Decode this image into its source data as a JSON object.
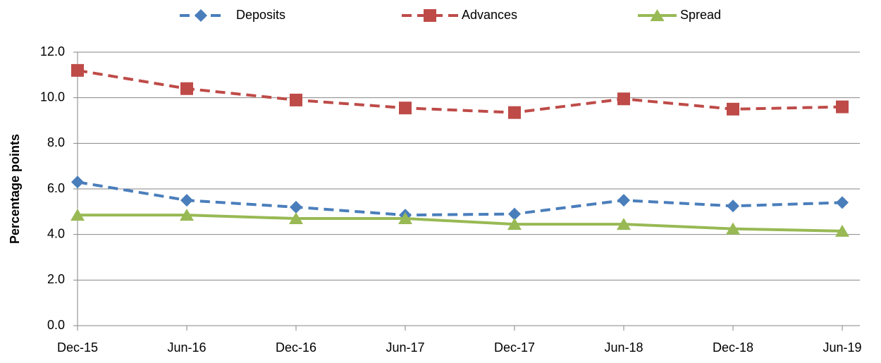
{
  "chart_data": {
    "type": "line",
    "y_label": "Percentage points",
    "categories": [
      "Dec-15",
      "Jun-16",
      "Dec-16",
      "Jun-17",
      "Dec-17",
      "Jun-18",
      "Dec-18",
      "Jun-19"
    ],
    "series": [
      {
        "name": "Deposits",
        "color": "#4a7ebb",
        "dashed": true,
        "marker": "diamond",
        "values": [
          6.3,
          5.5,
          5.2,
          4.85,
          4.9,
          5.5,
          5.25,
          5.4
        ]
      },
      {
        "name": "Advances",
        "color": "#be4b48",
        "dashed": true,
        "marker": "square",
        "values": [
          11.2,
          10.4,
          9.9,
          9.55,
          9.35,
          9.95,
          9.5,
          9.6
        ]
      },
      {
        "name": "Spread",
        "color": "#98b954",
        "dashed": false,
        "marker": "triangle",
        "values": [
          4.85,
          4.85,
          4.7,
          4.7,
          4.45,
          4.45,
          4.25,
          4.15
        ]
      }
    ],
    "ylim": [
      0,
      12
    ],
    "yticks": [
      {
        "value": 0,
        "label": "0.0"
      },
      {
        "value": 2,
        "label": "2.0"
      },
      {
        "value": 4,
        "label": "4.0"
      },
      {
        "value": 6,
        "label": "6.0"
      },
      {
        "value": 8,
        "label": "8.0"
      },
      {
        "value": 10,
        "label": "10.0"
      },
      {
        "value": 12,
        "label": "12.0"
      }
    ],
    "grid": true,
    "legend": "top"
  }
}
